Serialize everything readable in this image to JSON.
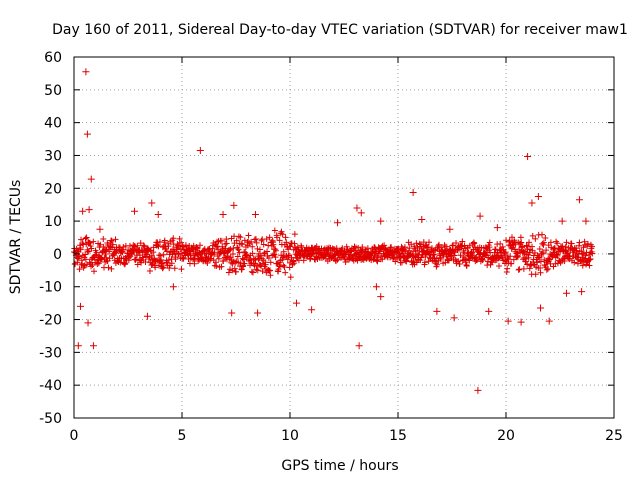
{
  "chart_data": {
    "type": "scatter",
    "title": "Day 160 of 2011, Sidereal Day-to-day VTEC variation (SDTVAR) for receiver maw1",
    "xlabel": "GPS time / hours",
    "ylabel": "SDTVAR / TECUs",
    "xlim": [
      0,
      25
    ],
    "ylim": [
      -50,
      60
    ],
    "x_ticks": [
      0,
      5,
      10,
      15,
      20,
      25
    ],
    "y_ticks": [
      -50,
      -40,
      -30,
      -20,
      -10,
      0,
      10,
      20,
      30,
      40,
      50,
      60
    ],
    "grid": true,
    "marker": "plus",
    "colors": {
      "series": "#e00000",
      "grid": "#a0a0a0",
      "frame": "#000000"
    },
    "series": [
      {
        "name": "SDTVAR",
        "x": [
          0.55,
          0.62,
          0.8,
          5.85,
          21.0,
          15.7,
          18.7,
          13.2,
          0.9,
          0.2,
          0.65,
          0.3,
          8.5,
          3.4,
          7.3,
          11.0,
          10.3,
          4.6,
          14.0,
          14.2,
          16.8,
          17.6,
          19.2,
          20.1,
          20.7,
          21.6,
          22.0,
          22.8,
          23.5,
          0.4,
          0.7,
          1.2,
          2.8,
          3.6,
          3.9,
          6.9,
          7.4,
          8.4,
          12.2,
          13.1,
          13.3,
          14.2,
          16.1,
          17.4,
          18.8,
          19.6,
          21.2,
          21.5,
          22.6,
          23.4,
          23.7
        ],
        "y": [
          55.5,
          36.5,
          22.8,
          31.5,
          29.7,
          18.7,
          -41.6,
          -28,
          -28,
          -28,
          -21,
          -16,
          -18,
          -19,
          -18,
          -17,
          -15,
          -10,
          -10,
          -13,
          -17.5,
          -19.5,
          -17.5,
          -20.5,
          -20.8,
          -16.5,
          -20.5,
          -12,
          -11.5,
          13,
          13.5,
          7.5,
          13,
          15.5,
          12,
          12,
          14.8,
          12,
          9.5,
          14,
          12.5,
          10,
          10.5,
          7.5,
          11.5,
          8,
          15.5,
          17.5,
          10,
          16.5,
          10
        ]
      }
    ],
    "band": {
      "x_range": [
        0,
        24
      ],
      "center": 0,
      "spread_segments": [
        {
          "x_from": 0,
          "x_to": 2,
          "spread": 4
        },
        {
          "x_from": 2,
          "x_to": 3.5,
          "spread": 2.5
        },
        {
          "x_from": 3.5,
          "x_to": 5,
          "spread": 4
        },
        {
          "x_from": 5,
          "x_to": 6.5,
          "spread": 2.5
        },
        {
          "x_from": 6.5,
          "x_to": 8,
          "spread": 4.5
        },
        {
          "x_from": 8,
          "x_to": 10.3,
          "spread": 5.5
        },
        {
          "x_from": 10.3,
          "x_to": 15,
          "spread": 2
        },
        {
          "x_from": 15,
          "x_to": 20,
          "spread": 3
        },
        {
          "x_from": 20,
          "x_to": 22,
          "spread": 5
        },
        {
          "x_from": 22,
          "x_to": 24,
          "spread": 3
        }
      ]
    }
  }
}
